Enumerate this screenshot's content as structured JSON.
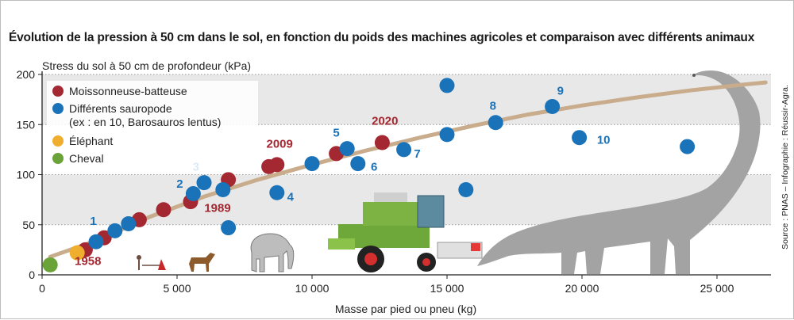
{
  "chart_data": {
    "type": "scatter",
    "title": "Évolution de la pression à 50 cm dans le sol, en fonction du poids des machines agricoles et comparaison avec différents animaux",
    "ylabel": "Stress du sol à 50 cm de profondeur (kPa)",
    "xlabel": "Masse par pied ou pneu (kg)",
    "xlim": [
      0,
      27000
    ],
    "ylim": [
      0,
      200
    ],
    "x_ticks": [
      {
        "v": 0,
        "label": "0"
      },
      {
        "v": 5000,
        "label": "5 000"
      },
      {
        "v": 10000,
        "label": "10 000"
      },
      {
        "v": 15000,
        "label": "15 000"
      },
      {
        "v": 20000,
        "label": "20 000"
      },
      {
        "v": 25000,
        "label": "25 000"
      }
    ],
    "y_ticks": [
      {
        "v": 0,
        "label": "0"
      },
      {
        "v": 50,
        "label": "50"
      },
      {
        "v": 100,
        "label": "100"
      },
      {
        "v": 150,
        "label": "150"
      },
      {
        "v": 200,
        "label": "200"
      }
    ],
    "bands": [
      [
        50,
        100
      ],
      [
        150,
        200
      ]
    ],
    "grid": "horizontal dotted",
    "legend_position": "top-left",
    "legend": [
      {
        "label": "Moissonneuse-batteuse",
        "color": "#a42831"
      },
      {
        "label": "Différents sauropode\n(ex : en 10, Barosauros lentus)",
        "color": "#1a72b8"
      },
      {
        "label": "Éléphant",
        "color": "#f0ae2e"
      },
      {
        "label": "Cheval",
        "color": "#6aa338"
      }
    ],
    "trend_curve": [
      [
        300,
        18
      ],
      [
        2000,
        34
      ],
      [
        4000,
        58
      ],
      [
        6000,
        78
      ],
      [
        8000,
        95
      ],
      [
        10000,
        110
      ],
      [
        12000,
        124
      ],
      [
        14000,
        137
      ],
      [
        16000,
        149
      ],
      [
        18000,
        160
      ],
      [
        20000,
        169
      ],
      [
        22000,
        177
      ],
      [
        24000,
        184
      ],
      [
        26000,
        190
      ],
      [
        26800,
        192
      ]
    ],
    "series": [
      {
        "name": "Moissonneuse-batteuse",
        "color": "#a42831",
        "points": [
          {
            "x": 1600,
            "y": 25
          },
          {
            "x": 2300,
            "y": 37
          },
          {
            "x": 3600,
            "y": 55
          },
          {
            "x": 4500,
            "y": 65
          },
          {
            "x": 5500,
            "y": 73
          },
          {
            "x": 6900,
            "y": 95
          },
          {
            "x": 8400,
            "y": 108
          },
          {
            "x": 8700,
            "y": 110
          },
          {
            "x": 10900,
            "y": 121
          },
          {
            "x": 12600,
            "y": 132
          }
        ]
      },
      {
        "name": "Différents sauropode",
        "color": "#1a72b8",
        "points": [
          {
            "x": 2000,
            "y": 33
          },
          {
            "x": 2700,
            "y": 44
          },
          {
            "x": 3200,
            "y": 51
          },
          {
            "x": 5600,
            "y": 81
          },
          {
            "x": 6000,
            "y": 92
          },
          {
            "x": 6700,
            "y": 85
          },
          {
            "x": 6900,
            "y": 47
          },
          {
            "x": 8700,
            "y": 82
          },
          {
            "x": 10000,
            "y": 111
          },
          {
            "x": 11300,
            "y": 126
          },
          {
            "x": 11700,
            "y": 111
          },
          {
            "x": 13400,
            "y": 125
          },
          {
            "x": 15000,
            "y": 140
          },
          {
            "x": 15000,
            "y": 189
          },
          {
            "x": 15700,
            "y": 85
          },
          {
            "x": 16800,
            "y": 152
          },
          {
            "x": 18900,
            "y": 168
          },
          {
            "x": 19900,
            "y": 137
          },
          {
            "x": 23900,
            "y": 128
          }
        ]
      },
      {
        "name": "Éléphant",
        "color": "#f0ae2e",
        "points": [
          {
            "x": 1300,
            "y": 22
          }
        ]
      },
      {
        "name": "Cheval",
        "color": "#6aa338",
        "points": [
          {
            "x": 300,
            "y": 10
          }
        ]
      }
    ],
    "annotations": [
      {
        "text": "1958",
        "x": 1700,
        "y": 10,
        "color": "#a42831"
      },
      {
        "text": "1989",
        "x": 6500,
        "y": 63,
        "color": "#a42831"
      },
      {
        "text": "2009",
        "x": 8800,
        "y": 127,
        "color": "#a42831"
      },
      {
        "text": "2020",
        "x": 12700,
        "y": 150,
        "color": "#a42831"
      },
      {
        "text": "1",
        "x": 1900,
        "y": 50,
        "color": "#1a72b8"
      },
      {
        "text": "2",
        "x": 5100,
        "y": 87,
        "color": "#1a72b8"
      },
      {
        "text": "3",
        "x": 5700,
        "y": 104,
        "color": "#1a72b8"
      },
      {
        "text": "4",
        "x": 9200,
        "y": 74,
        "color": "#1a72b8"
      },
      {
        "text": "5",
        "x": 10900,
        "y": 138,
        "color": "#1a72b8"
      },
      {
        "text": "6",
        "x": 12300,
        "y": 104,
        "color": "#1a72b8"
      },
      {
        "text": "7",
        "x": 13900,
        "y": 117,
        "color": "#1a72b8"
      },
      {
        "text": "8",
        "x": 16700,
        "y": 165,
        "color": "#1a72b8"
      },
      {
        "text": "9",
        "x": 19200,
        "y": 180,
        "color": "#1a72b8"
      },
      {
        "text": "10",
        "x": 20800,
        "y": 131,
        "color": "#1a72b8"
      }
    ]
  },
  "source": "Source : PNAS – Infographie : Réussir-Agra."
}
